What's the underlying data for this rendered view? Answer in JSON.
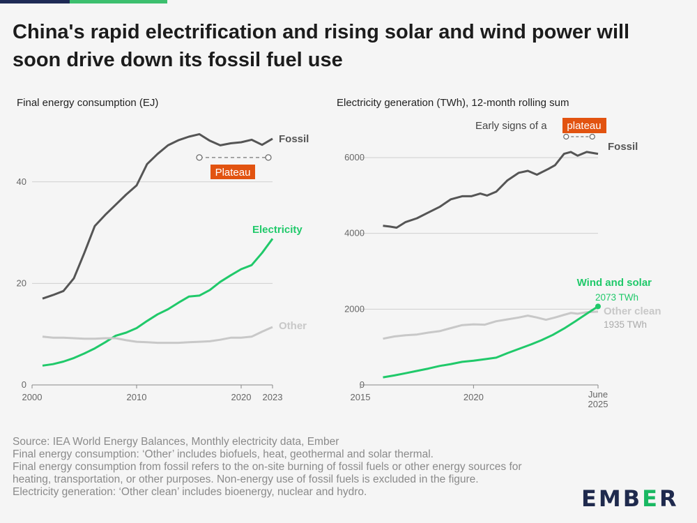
{
  "title": "China's rapid electrification and rising solar and wind power will soon drive down its fossil fuel use",
  "colors": {
    "fossil": "#555555",
    "electricity": "#20c96a",
    "other": "#c8c8c8",
    "plateau": "#e25310",
    "grid": "#cfcfcf"
  },
  "chart_data": [
    {
      "type": "line",
      "title": "Final energy consumption (EJ)",
      "x_ticks": [
        "2000",
        "2010",
        "2020",
        "2023"
      ],
      "y_ticks": [
        "0",
        "20",
        "40"
      ],
      "xlim": [
        2000,
        2023
      ],
      "ylim": [
        0,
        50
      ],
      "annotation": "Plateau",
      "annotation_range": [
        2016,
        2023
      ],
      "annotation_value": 44.8,
      "series": [
        {
          "name": "Fossil",
          "x": [
            2001,
            2002,
            2003,
            2004,
            2005,
            2006,
            2007,
            2008,
            2009,
            2010,
            2011,
            2012,
            2013,
            2014,
            2015,
            2016,
            2017,
            2018,
            2019,
            2020,
            2021,
            2022,
            2023
          ],
          "values": [
            17.0,
            17.7,
            18.5,
            21.0,
            26.0,
            31.3,
            33.5,
            35.5,
            37.5,
            39.3,
            43.5,
            45.5,
            47.2,
            48.2,
            48.9,
            49.4,
            48.1,
            47.2,
            47.6,
            47.8,
            48.3,
            47.3,
            48.5
          ]
        },
        {
          "name": "Electricity",
          "x": [
            2001,
            2002,
            2003,
            2004,
            2005,
            2006,
            2007,
            2008,
            2009,
            2010,
            2011,
            2012,
            2013,
            2014,
            2015,
            2016,
            2017,
            2018,
            2019,
            2020,
            2021,
            2022,
            2023
          ],
          "values": [
            3.8,
            4.1,
            4.6,
            5.3,
            6.2,
            7.2,
            8.4,
            9.7,
            10.3,
            11.2,
            12.6,
            13.9,
            14.9,
            16.2,
            17.4,
            17.6,
            18.7,
            20.3,
            21.6,
            22.8,
            23.6,
            26.0,
            28.8
          ]
        },
        {
          "name": "Other",
          "x": [
            2001,
            2002,
            2003,
            2004,
            2005,
            2006,
            2007,
            2008,
            2009,
            2010,
            2011,
            2012,
            2013,
            2014,
            2015,
            2016,
            2017,
            2018,
            2019,
            2020,
            2021,
            2022,
            2023
          ],
          "values": [
            9.5,
            9.3,
            9.3,
            9.2,
            9.1,
            9.1,
            9.2,
            9.2,
            8.8,
            8.5,
            8.4,
            8.3,
            8.3,
            8.3,
            8.4,
            8.5,
            8.6,
            8.9,
            9.3,
            9.3,
            9.5,
            10.5,
            11.4
          ]
        }
      ]
    },
    {
      "type": "line",
      "title": "Electricity generation (TWh), 12-month rolling sum",
      "x_ticks": [
        "2015",
        "2020",
        "June",
        "2025"
      ],
      "y_ticks": [
        "0",
        "2000",
        "4000",
        "6000"
      ],
      "xlim": [
        2015,
        2025.5
      ],
      "ylim": [
        0,
        6700
      ],
      "annotation_prefix": "Early signs of a",
      "annotation": "plateau",
      "annotation_range": [
        2024.0,
        2025.0
      ],
      "annotation_value": 6400,
      "series": [
        {
          "name": "Fossil",
          "x": [
            2016.0,
            2016.3,
            2016.6,
            2017.0,
            2017.5,
            2018.0,
            2018.5,
            2019.0,
            2019.5,
            2019.9,
            2020.3,
            2020.6,
            2021.0,
            2021.5,
            2022.0,
            2022.4,
            2022.8,
            2023.3,
            2023.6,
            2024.0,
            2024.3,
            2024.6,
            2025.0,
            2025.5
          ],
          "values": [
            4200,
            4180,
            4150,
            4300,
            4400,
            4550,
            4700,
            4900,
            4980,
            4980,
            5050,
            5000,
            5100,
            5400,
            5600,
            5650,
            5550,
            5700,
            5800,
            6100,
            6150,
            6050,
            6150,
            6100
          ]
        },
        {
          "name": "Other clean",
          "label": "1935 TWh",
          "x": [
            2016.0,
            2016.5,
            2017.0,
            2017.5,
            2018.0,
            2018.5,
            2019.0,
            2019.5,
            2020.0,
            2020.5,
            2021.0,
            2021.5,
            2022.0,
            2022.4,
            2022.8,
            2023.2,
            2023.6,
            2024.0,
            2024.3,
            2024.6,
            2025.0,
            2025.5
          ],
          "values": [
            1220,
            1280,
            1310,
            1330,
            1380,
            1420,
            1500,
            1580,
            1600,
            1590,
            1680,
            1730,
            1780,
            1830,
            1780,
            1720,
            1780,
            1850,
            1900,
            1880,
            1920,
            1935
          ]
        },
        {
          "name": "Wind and solar",
          "label": "2073 TWh",
          "x": [
            2016.0,
            2016.5,
            2017.0,
            2017.5,
            2018.0,
            2018.5,
            2019.0,
            2019.5,
            2020.0,
            2020.5,
            2021.0,
            2021.5,
            2022.0,
            2022.5,
            2023.0,
            2023.5,
            2024.0,
            2024.5,
            2025.0,
            2025.5
          ],
          "values": [
            200,
            250,
            310,
            370,
            430,
            500,
            550,
            610,
            640,
            680,
            720,
            840,
            950,
            1060,
            1180,
            1320,
            1490,
            1680,
            1880,
            2073
          ]
        }
      ]
    }
  ],
  "footer": {
    "source": "Source: IEA World Energy Balances, Monthly electricity data, Ember",
    "note1": "Final energy consumption: ‘Other’ includes biofuels, heat, geothermal and solar thermal.",
    "note2": "Final energy consumption from fossil refers to the on-site burning of fossil fuels or other energy sources for heating, transportation, or other purposes. Non-energy use of fossil fuels is excluded in the figure.",
    "note3": "Electricity generation: ‘Other clean’ includes bioenergy, nuclear and hydro."
  },
  "logo": {
    "part1": "EMB",
    "part2": "E",
    "part3": "R"
  }
}
